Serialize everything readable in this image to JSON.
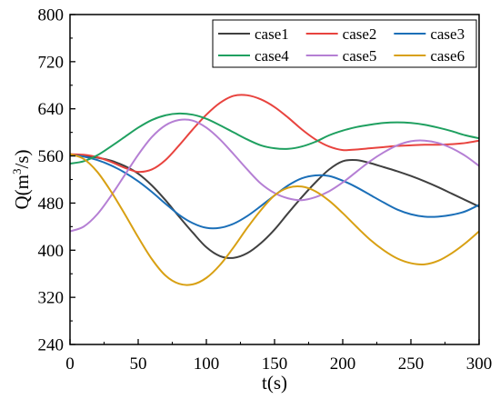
{
  "chart_data": {
    "type": "line",
    "xlabel": "t(s)",
    "ylabel_main": "Q(m",
    "ylabel_sup": "3",
    "ylabel_tail": "/s)",
    "xlim": [
      0,
      300
    ],
    "ylim": [
      240,
      800
    ],
    "xticks": [
      0,
      50,
      100,
      150,
      200,
      250,
      300
    ],
    "yticks": [
      240,
      320,
      400,
      480,
      560,
      640,
      720,
      800
    ],
    "grid": false,
    "legend_position": "top-right",
    "series": [
      {
        "name": "case1",
        "color": "#404040",
        "x": [
          0,
          10,
          20,
          30,
          40,
          50,
          60,
          70,
          80,
          90,
          100,
          110,
          120,
          130,
          140,
          150,
          160,
          170,
          180,
          190,
          200,
          210,
          220,
          230,
          240,
          250,
          260,
          270,
          280,
          290,
          300
        ],
        "y": [
          563,
          560,
          557,
          552,
          543,
          530,
          510,
          485,
          457,
          430,
          405,
          390,
          387,
          395,
          412,
          435,
          463,
          490,
          515,
          537,
          551,
          553,
          548,
          541,
          534,
          526,
          517,
          507,
          496,
          485,
          474
        ]
      },
      {
        "name": "case2",
        "color": "#e8433e",
        "x": [
          0,
          10,
          20,
          30,
          40,
          50,
          60,
          70,
          80,
          90,
          100,
          110,
          120,
          130,
          140,
          150,
          160,
          170,
          180,
          190,
          200,
          210,
          220,
          230,
          240,
          250,
          260,
          270,
          280,
          290,
          300
        ],
        "y": [
          563,
          562,
          558,
          550,
          540,
          533,
          537,
          553,
          578,
          605,
          630,
          650,
          662,
          663,
          656,
          643,
          625,
          605,
          588,
          576,
          570,
          571,
          573,
          575,
          577,
          578,
          579,
          579,
          580,
          582,
          586
        ]
      },
      {
        "name": "case3",
        "color": "#1b6fb8",
        "x": [
          0,
          10,
          20,
          30,
          40,
          50,
          60,
          70,
          80,
          90,
          100,
          110,
          120,
          130,
          140,
          150,
          160,
          170,
          180,
          190,
          200,
          210,
          220,
          230,
          240,
          250,
          260,
          270,
          280,
          290,
          300
        ],
        "y": [
          562,
          559,
          553,
          544,
          532,
          517,
          499,
          479,
          460,
          446,
          438,
          438,
          445,
          458,
          475,
          493,
          510,
          522,
          527,
          526,
          518,
          507,
          494,
          481,
          469,
          461,
          457,
          457,
          460,
          466,
          477
        ]
      },
      {
        "name": "case4",
        "color": "#1fa060",
        "x": [
          0,
          10,
          20,
          30,
          40,
          50,
          60,
          70,
          80,
          90,
          100,
          110,
          120,
          130,
          140,
          150,
          160,
          170,
          180,
          190,
          200,
          210,
          220,
          230,
          240,
          250,
          260,
          270,
          280,
          290,
          300
        ],
        "y": [
          547,
          551,
          561,
          576,
          592,
          608,
          621,
          629,
          632,
          630,
          623,
          612,
          600,
          588,
          578,
          573,
          572,
          576,
          584,
          595,
          603,
          609,
          613,
          616,
          617,
          616,
          613,
          608,
          602,
          595,
          590
        ]
      },
      {
        "name": "case5",
        "color": "#b57fd4",
        "x": [
          0,
          10,
          20,
          30,
          40,
          50,
          60,
          70,
          80,
          90,
          100,
          110,
          120,
          130,
          140,
          150,
          160,
          170,
          180,
          190,
          200,
          210,
          220,
          230,
          240,
          250,
          260,
          270,
          280,
          290,
          300
        ],
        "y": [
          432,
          440,
          461,
          492,
          527,
          562,
          592,
          612,
          621,
          620,
          608,
          588,
          563,
          537,
          513,
          497,
          488,
          485,
          490,
          500,
          515,
          533,
          551,
          566,
          578,
          585,
          586,
          582,
          573,
          560,
          543
        ]
      },
      {
        "name": "case6",
        "color": "#d8a013",
        "x": [
          0,
          10,
          20,
          30,
          40,
          50,
          60,
          70,
          80,
          90,
          100,
          110,
          120,
          130,
          140,
          150,
          160,
          170,
          180,
          190,
          200,
          210,
          220,
          230,
          240,
          250,
          260,
          270,
          280,
          290,
          300
        ],
        "y": [
          563,
          555,
          533,
          500,
          462,
          422,
          385,
          357,
          343,
          342,
          353,
          375,
          405,
          438,
          468,
          493,
          506,
          508,
          500,
          484,
          463,
          440,
          418,
          400,
          386,
          378,
          376,
          382,
          395,
          412,
          432
        ]
      }
    ]
  }
}
